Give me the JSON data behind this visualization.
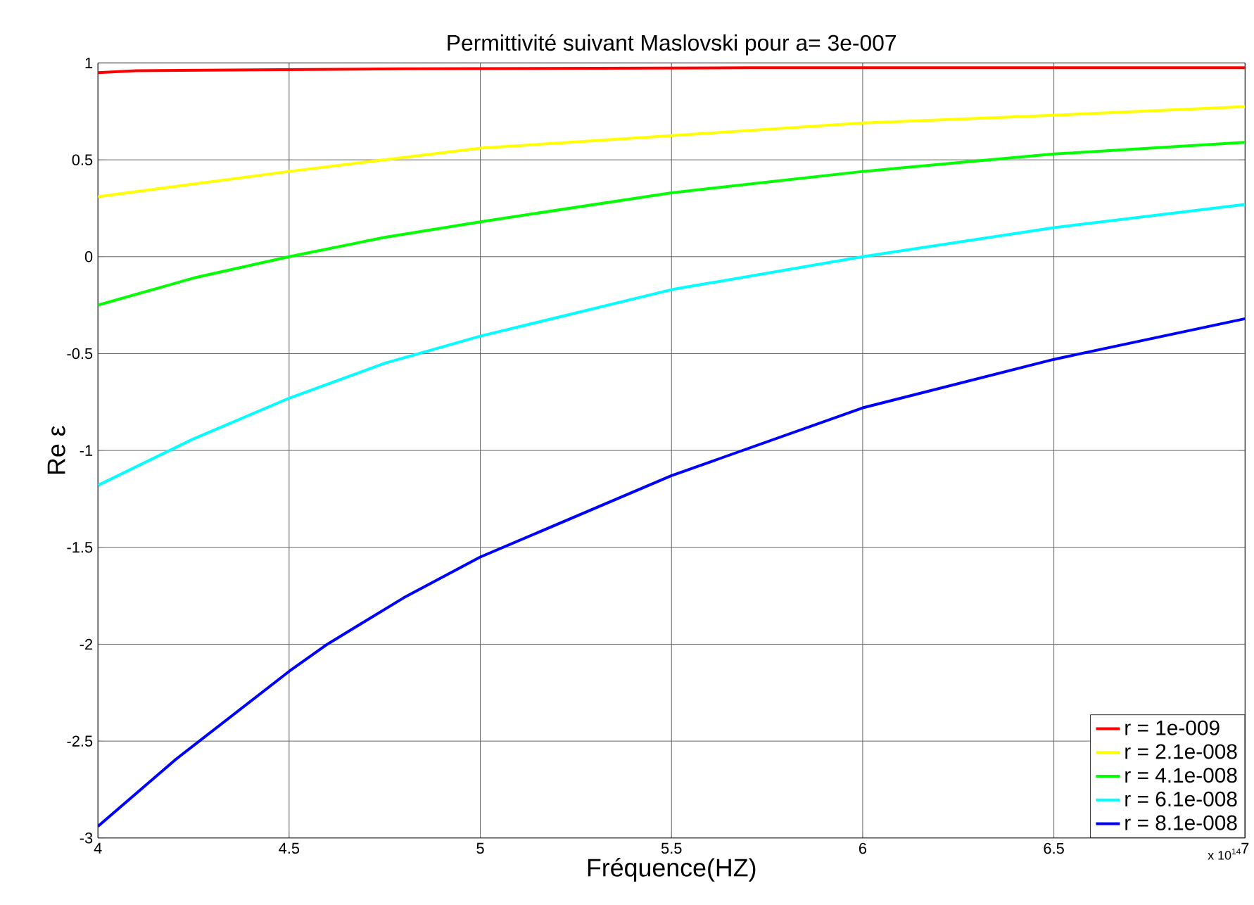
{
  "chart_data": {
    "type": "line",
    "title": "Permittivité suivant Maslovski pour  a= 3e-007",
    "xlabel": "Fréquence(HZ)",
    "ylabel": "Re ε",
    "annotations": [
      "x 10$^{14}$"
    ],
    "xlim": [
      4,
      7
    ],
    "ylim": [
      -3,
      1
    ],
    "xticks": [
      4,
      4.5,
      5,
      5.5,
      6,
      6.5,
      7
    ],
    "yticks": [
      -3,
      -2.5,
      -2,
      -1.5,
      -1,
      -0.5,
      0,
      0.5,
      1
    ],
    "grid": true,
    "legend": "bottom right",
    "marker": "none",
    "line_style": "solid",
    "series": [
      {
        "name": "r = 1e-009",
        "color": "#ff0000",
        "x": [
          4,
          4.1,
          4.8,
          5.7,
          7
        ],
        "values": [
          0.95,
          0.96,
          0.97,
          0.975,
          0.975
        ]
      },
      {
        "name": "r = 2.1e-008",
        "color": "#ffff00",
        "x": [
          4,
          4.5,
          5,
          5.5,
          6,
          6.5,
          7
        ],
        "values": [
          0.31,
          0.44,
          0.56,
          0.625,
          0.69,
          0.73,
          0.775
        ]
      },
      {
        "name": "r = 4.1e-008",
        "color": "#00ff00",
        "x": [
          4,
          4.25,
          4.5,
          4.75,
          5,
          5.5,
          6,
          6.5,
          7
        ],
        "values": [
          -0.25,
          -0.11,
          0.0,
          0.1,
          0.18,
          0.33,
          0.44,
          0.53,
          0.59
        ]
      },
      {
        "name": "r = 6.1e-008",
        "color": "#00ffff",
        "x": [
          4,
          4.25,
          4.5,
          4.75,
          5,
          5.5,
          6,
          6.5,
          7
        ],
        "values": [
          -1.18,
          -0.94,
          -0.73,
          -0.55,
          -0.41,
          -0.17,
          0.0,
          0.15,
          0.27
        ]
      },
      {
        "name": "r = 8.1e-008",
        "color": "#0000ff",
        "x": [
          4,
          4.2,
          4.5,
          4.6,
          4.8,
          5,
          5.5,
          6,
          6.5,
          7
        ],
        "values": [
          -2.94,
          -2.6,
          -2.14,
          -2.0,
          -1.76,
          -1.55,
          -1.13,
          -0.78,
          -0.53,
          -0.32
        ]
      }
    ]
  }
}
